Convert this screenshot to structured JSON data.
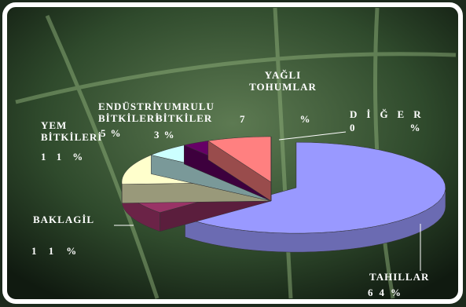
{
  "chart_data": {
    "type": "pie3d",
    "categories": [
      "TAHILLAR",
      "BAKLAGİL",
      "YEM BİTKİLERİ",
      "ENDÜSTRİ BİTKİLERİ",
      "YUMRULU BİTKİLER",
      "YAĞLI TOHUMLAR",
      "DİĞER"
    ],
    "values": [
      64,
      11,
      11,
      5,
      3,
      7,
      0
    ],
    "value_labels": [
      "64%",
      "11%",
      "11%",
      "5%",
      "3%",
      "7%",
      "0%"
    ],
    "colors": [
      "#9999ff",
      "#993366",
      "#ffffcc",
      "#ccffff",
      "#660066",
      "#ff8080",
      "#0066cc"
    ]
  }
}
